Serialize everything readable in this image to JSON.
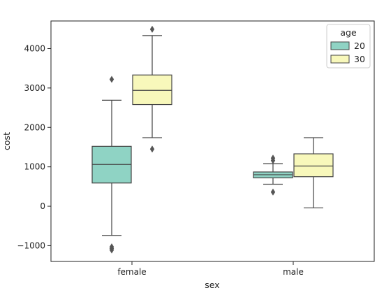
{
  "chart_data": {
    "type": "boxplot",
    "xlabel": "sex",
    "ylabel": "cost",
    "categories": [
      "female",
      "male"
    ],
    "ylim": [
      -1400,
      4700
    ],
    "y_ticks": [
      -1000,
      0,
      1000,
      2000,
      3000,
      4000
    ],
    "y_tick_labels": [
      "−1000",
      "0",
      "1000",
      "2000",
      "3000",
      "4000"
    ],
    "grid": false,
    "legend": {
      "title": "age",
      "placement": "top-right"
    },
    "series": [
      {
        "name": "20",
        "color": "#8fd3c4",
        "boxes": [
          {
            "category": "female",
            "whislo": -740,
            "q1": 590,
            "med": 1060,
            "q3": 1520,
            "whishi": 2690,
            "fliers": [
              3220,
              -1030,
              -1070,
              -1110
            ]
          },
          {
            "category": "male",
            "whislo": 560,
            "q1": 720,
            "med": 800,
            "q3": 870,
            "whishi": 1080,
            "fliers": [
              1160,
              1220,
              360
            ]
          }
        ]
      },
      {
        "name": "30",
        "color": "#f8f8bb",
        "boxes": [
          {
            "category": "female",
            "whislo": 1740,
            "q1": 2580,
            "med": 2940,
            "q3": 3330,
            "whishi": 4330,
            "fliers": [
              4490,
              1450
            ]
          },
          {
            "category": "male",
            "whislo": -40,
            "q1": 750,
            "med": 1020,
            "q3": 1330,
            "whishi": 1740,
            "fliers": []
          }
        ]
      }
    ]
  }
}
